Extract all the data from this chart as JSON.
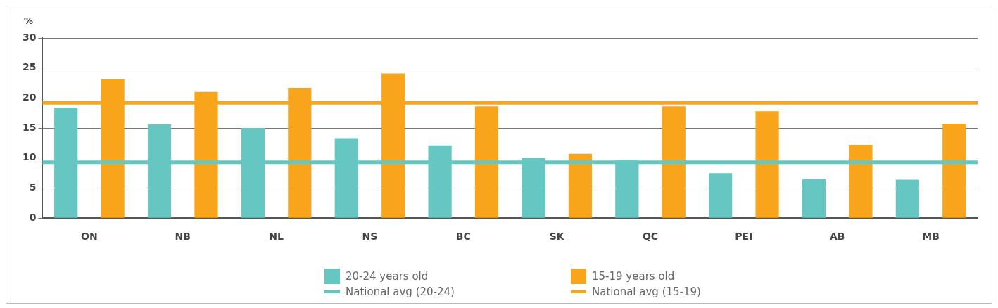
{
  "chart_data": {
    "type": "bar",
    "ylabel": "%",
    "categories": [
      "ON",
      "NB",
      "NL",
      "NS",
      "BC",
      "SK",
      "QC",
      "PEI",
      "AB",
      "MB"
    ],
    "series": [
      {
        "name": "20-24 years old",
        "color": "#66c7c2",
        "values": [
          18.4,
          15.6,
          15.0,
          13.3,
          12.1,
          10.0,
          9.6,
          7.5,
          6.5,
          6.4
        ]
      },
      {
        "name": "15-19 years old",
        "color": "#f8a51b",
        "values": [
          23.2,
          21.0,
          21.7,
          24.1,
          18.6,
          10.7,
          18.6,
          17.8,
          12.2,
          15.7
        ]
      }
    ],
    "ref_lines": [
      {
        "axis": "y",
        "value": 9.3,
        "label": "National avg (20-24)",
        "color": "#66c7c2"
      },
      {
        "axis": "y",
        "value": 19.2,
        "label": "National avg (15-19)",
        "color": "#f8a51b"
      }
    ],
    "ylim": [
      0,
      30
    ],
    "yticks": [
      0,
      5,
      10,
      15,
      20,
      25,
      30
    ],
    "grid": "y",
    "legend": "bottom"
  }
}
